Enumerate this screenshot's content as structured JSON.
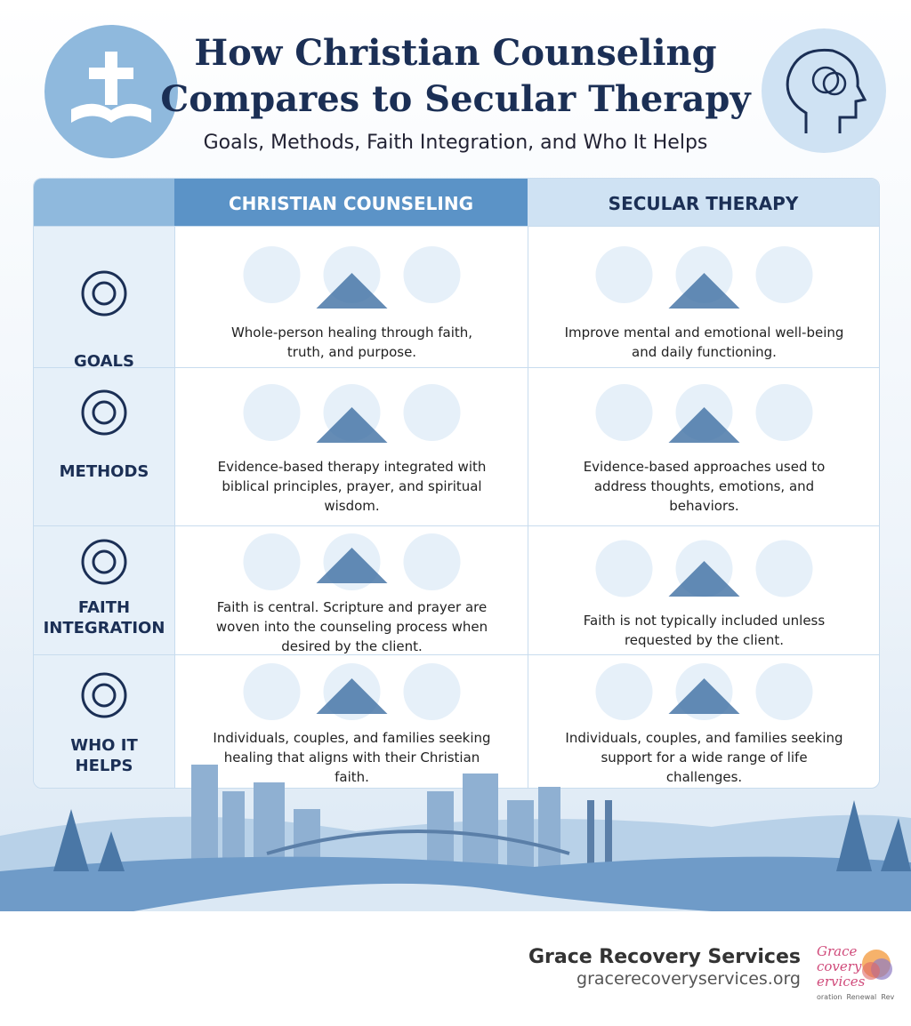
{
  "header": {
    "title_lines": [
      "How Christian Counseling",
      "Compares to Secular Therapy"
    ],
    "subtitle": "Goals, Methods, Faith Integration, and Who It Helps"
  },
  "table": {
    "columns": [
      "CHRISTIAN COUNSELING",
      "SECULAR THERAPY"
    ],
    "rows": [
      {
        "label": "GOALS",
        "christian": "Whole-person healing through faith, truth, and purpose.",
        "secular": "Improve mental and emotional well-being and daily functioning."
      },
      {
        "label": "METHODS",
        "christian": "Evidence-based therapy integrated with biblical principles, prayer, and spiritual wisdom.",
        "secular": "Evidence-based approaches used to address thoughts, emotions, and behaviors."
      },
      {
        "label": "FAITH INTEGRATION",
        "christian": "Faith is central. Scripture and prayer are woven into the counseling process when desired by the client.",
        "secular": "Faith is not typically included unless requested by the client."
      },
      {
        "label": "WHO IT HELPS",
        "christian": "Individuals, couples, and families seeking healing that aligns with their Christian faith.",
        "secular": "Individuals, couples, and families seeking support for a wide range of life challenges."
      }
    ]
  },
  "footer": {
    "name": "Grace Recovery Services",
    "url": "gracerecoveryservices.org",
    "logo_lines": [
      "Grace",
      "covery",
      "ervices"
    ],
    "logo_tagline": "oration  Renewal  Rev"
  }
}
